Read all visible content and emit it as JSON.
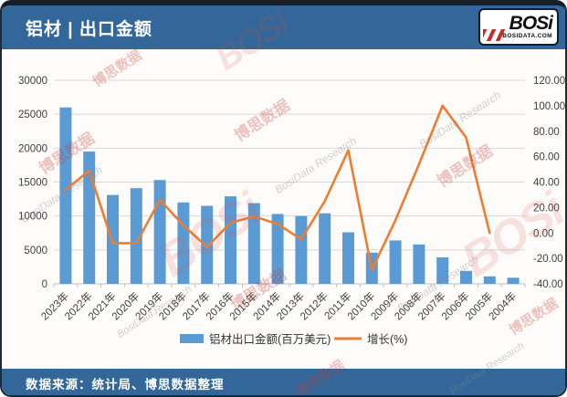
{
  "header": {
    "title": "铝材 | 出口金额",
    "logo_text": "BOSi",
    "logo_sub": "BOSIDATA.COM"
  },
  "footer": {
    "source": "数据来源：统计局、博思数据整理"
  },
  "watermark": {
    "cn": "博思数据",
    "en": "BosiData Research",
    "logo": "BOSi"
  },
  "colors": {
    "header_bg": "#336799",
    "footer_bg": "#336799",
    "bar": "#5B9BD5",
    "line": "#ED7D31",
    "grid": "#D9D9D9",
    "axis_line": "#BFBFBF",
    "axis_text": "#404040",
    "legend_text": "#333333"
  },
  "chart_data": {
    "type": "bar+line combo",
    "title": "铝材 | 出口金额",
    "categories": [
      "2023年",
      "2022年",
      "2021年",
      "2020年",
      "2019年",
      "2018年",
      "2017年",
      "2016年",
      "2015年",
      "2014年",
      "2013年",
      "2012年",
      "2011年",
      "2010年",
      "2009年",
      "2008年",
      "2007年",
      "2006年",
      "2005年",
      "2004年"
    ],
    "series": [
      {
        "name": "铝材出口金额(百万美元)",
        "type": "bar",
        "axis": "left",
        "values": [
          26000,
          19500,
          13100,
          14100,
          15300,
          12000,
          11500,
          12900,
          11900,
          10300,
          10000,
          10400,
          7600,
          4600,
          6400,
          5800,
          3900,
          1900,
          1100,
          900
        ]
      },
      {
        "name": "增长(%)",
        "type": "line",
        "axis": "right",
        "values": [
          34,
          49,
          -8,
          -8,
          26,
          6,
          -11,
          8,
          13,
          7,
          -5,
          25,
          65,
          -29,
          10,
          54,
          100,
          75,
          0,
          null
        ]
      }
    ],
    "left_axis": {
      "min": 0,
      "max": 30000,
      "step": 5000,
      "tick_values": [
        0,
        5000,
        10000,
        15000,
        20000,
        25000,
        30000
      ],
      "tick_labels": [
        "0",
        "5000",
        "10000",
        "15000",
        "20000",
        "25000",
        "30000"
      ]
    },
    "right_axis": {
      "min": -40,
      "max": 120,
      "step": 20,
      "tick_values": [
        -40,
        -20,
        0,
        20,
        40,
        60,
        80,
        100,
        120
      ],
      "tick_labels": [
        "-40.00",
        "-20.00",
        "0.00",
        "20.00",
        "40.00",
        "60.00",
        "80.00",
        "100.00",
        "120.00"
      ]
    },
    "grid": true,
    "legend_position": "bottom",
    "x_label_rotation": -45
  }
}
